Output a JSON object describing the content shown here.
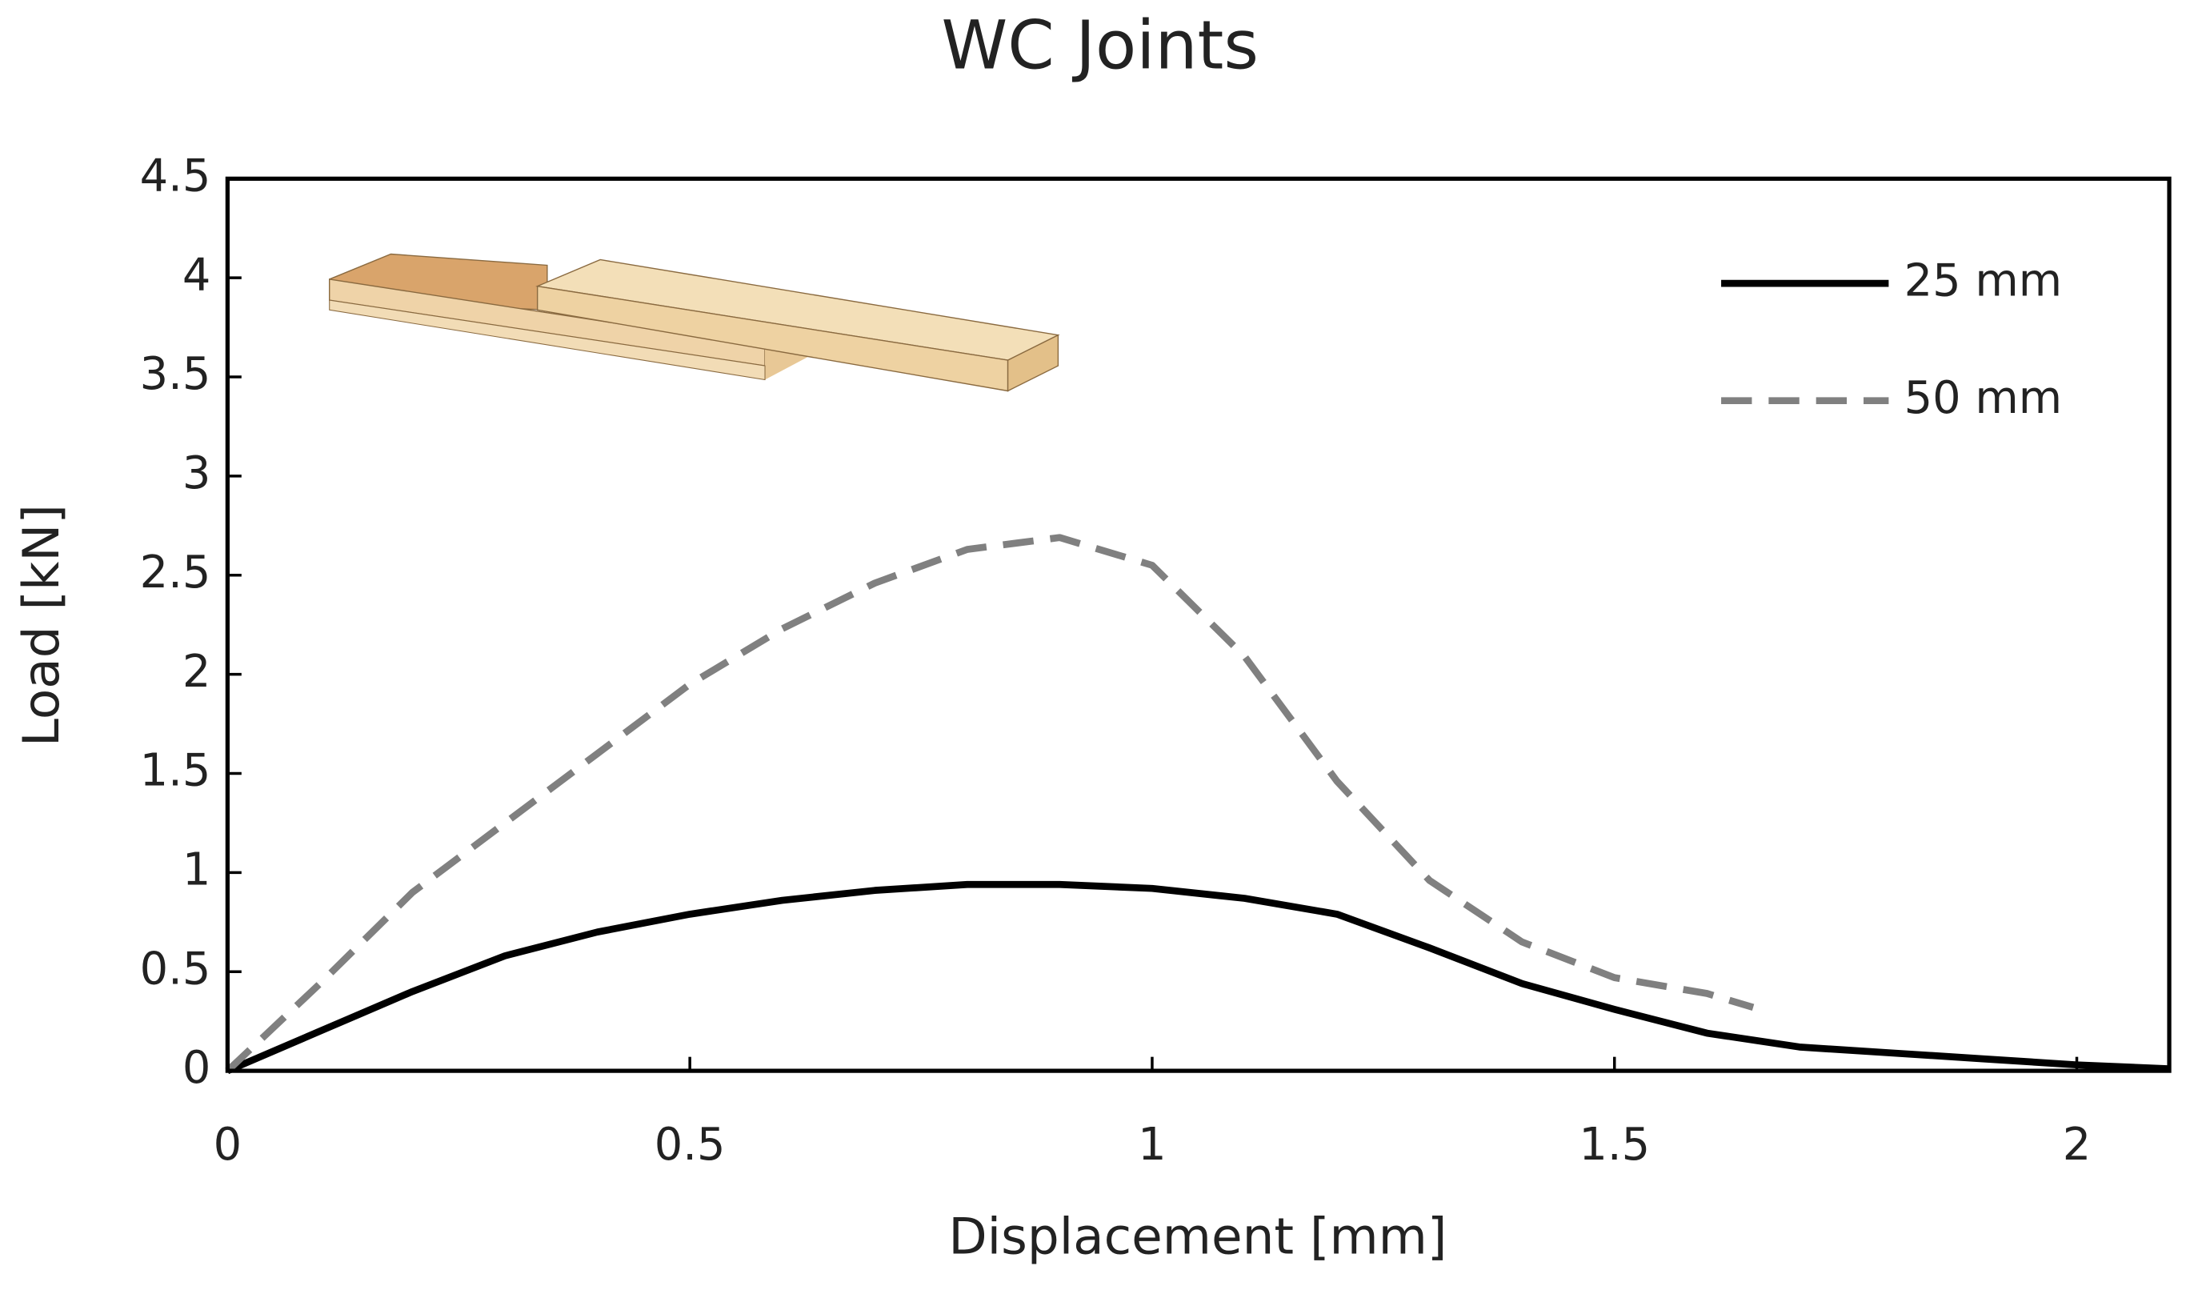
{
  "chart_data": {
    "type": "line",
    "title": "WC Joints",
    "x_label": "Displacement [mm]",
    "y_label": "Load [kN]",
    "xlim": [
      0,
      2.1
    ],
    "xticks": [
      0,
      0.5,
      1,
      1.5,
      2
    ],
    "ylim": [
      0,
      4.5
    ],
    "yticks": [
      0,
      0.5,
      1,
      1.5,
      2,
      2.5,
      3,
      3.5,
      4,
      4.5
    ],
    "legend": "upper right",
    "series": [
      {
        "name": "25 mm",
        "color": "#000000",
        "dash": false,
        "x": [
          0,
          0.1,
          0.2,
          0.3,
          0.4,
          0.5,
          0.6,
          0.7,
          0.8,
          0.9,
          1.0,
          1.1,
          1.2,
          1.3,
          1.4,
          1.5,
          1.6,
          1.7,
          1.8,
          1.9,
          2.0,
          2.1
        ],
        "values": [
          0,
          0.2,
          0.4,
          0.58,
          0.7,
          0.79,
          0.86,
          0.91,
          0.94,
          0.94,
          0.92,
          0.87,
          0.79,
          0.62,
          0.44,
          0.31,
          0.19,
          0.12,
          0.09,
          0.06,
          0.03,
          0.01
        ]
      },
      {
        "name": "50 mm",
        "color": "#808080",
        "dash": true,
        "x": [
          0,
          0.1,
          0.2,
          0.3,
          0.4,
          0.5,
          0.6,
          0.7,
          0.8,
          0.9,
          1.0,
          1.1,
          1.2,
          1.3,
          1.4,
          1.5,
          1.6,
          1.65
        ],
        "values": [
          0,
          0.44,
          0.9,
          1.25,
          1.6,
          1.95,
          2.23,
          2.46,
          2.63,
          2.69,
          2.55,
          2.09,
          1.46,
          0.96,
          0.65,
          0.47,
          0.39,
          0.32
        ]
      }
    ]
  }
}
